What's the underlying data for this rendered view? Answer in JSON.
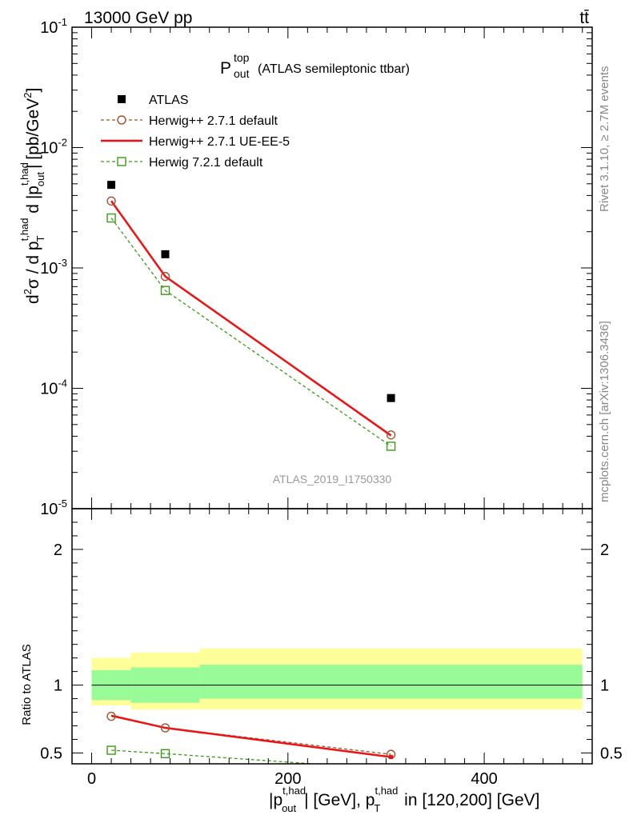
{
  "header": {
    "beam": "13000 GeV pp",
    "process": "tt̄"
  },
  "title": {
    "main": "P",
    "sup": "top",
    "sub": "out",
    "rest": "(ATLAS semileptonic ttbar)"
  },
  "side_labels": {
    "rivet": "Rivet 3.1.10, ≥ 2.7M events",
    "mcplots": "mcplots.cern.ch [arXiv:1306.3436]"
  },
  "analysis_id": "ATLAS_2019_I1750330",
  "upper_axis": {
    "ylabel": "d²σ / d p_T^{t,had} d |p_out^{t,had}| [pb/GeV²]",
    "scale": "log",
    "ylim": [
      1e-05,
      0.1
    ],
    "tick_labels": [
      "10⁻¹",
      "10⁻²",
      "10⁻³",
      "10⁻⁴",
      "10⁻⁵"
    ],
    "tick_base": "10",
    "tick_exps": [
      "-1",
      "-2",
      "-3",
      "-4",
      "-5"
    ]
  },
  "lower_axis": {
    "ylabel": "Ratio to ATLAS",
    "ylim": [
      0.42,
      2.3
    ],
    "tick_labels": [
      "0.5",
      "1",
      "2"
    ]
  },
  "x_axis": {
    "xlabel": "|p_out^{t,had}| [GeV], p_T^{t,had} in [120,200] [GeV]",
    "xlim": [
      -20,
      510
    ],
    "tick_labels": [
      "0",
      "200",
      "400"
    ]
  },
  "legend": {
    "placement": "top-left",
    "entries": [
      {
        "label": "ATLAS",
        "style": "data-square"
      },
      {
        "label": "Herwig++ 2.7.1 default",
        "style": "dashed-circle"
      },
      {
        "label": "Herwig++ 2.7.1 UE-EE-5",
        "style": "solid"
      },
      {
        "label": "Herwig 7.2.1 default",
        "style": "dashed-square"
      }
    ]
  },
  "colors": {
    "data": "#000000",
    "herwigpp_default": "#a0522d",
    "herwigpp_ueee5": "#ee1111",
    "herwig7": "#3c9a16",
    "band_inner": "#98fb98",
    "band_outer": "#ffff99",
    "side_text": "#888888"
  },
  "chart_data": {
    "type": "scatter",
    "title": "P_out^top (ATLAS semileptonic ttbar)",
    "x": [
      20,
      75,
      305
    ],
    "series": [
      {
        "name": "ATLAS",
        "values": [
          0.0049,
          0.0013,
          8.3e-05
        ]
      },
      {
        "name": "Herwig++ 2.7.1 default",
        "values": [
          0.0036,
          0.00085,
          4.1e-05
        ]
      },
      {
        "name": "Herwig++ 2.7.1 UE-EE-5",
        "values": [
          0.0036,
          0.00085,
          4.05e-05
        ]
      },
      {
        "name": "Herwig 7.2.1 default",
        "values": [
          0.0026,
          0.00065,
          3.3e-05
        ]
      }
    ],
    "ratio": {
      "series": [
        {
          "name": "Herwig++ 2.7.1 default",
          "values": [
            0.77,
            0.685,
            0.49
          ]
        },
        {
          "name": "Herwig++ 2.7.1 UE-EE-5",
          "values": [
            0.775,
            0.685,
            0.47
          ]
        },
        {
          "name": "Herwig 7.2.1 default",
          "values": [
            0.52,
            0.495,
            0.38
          ]
        }
      ],
      "bands": [
        {
          "x_range": [
            0,
            40
          ],
          "inner": [
            0.89,
            1.11
          ],
          "outer": [
            0.85,
            1.2
          ]
        },
        {
          "x_range": [
            40,
            110
          ],
          "inner": [
            0.87,
            1.13
          ],
          "outer": [
            0.82,
            1.24
          ]
        },
        {
          "x_range": [
            110,
            500
          ],
          "inner": [
            0.9,
            1.15
          ],
          "outer": [
            0.82,
            1.27
          ]
        }
      ]
    }
  }
}
